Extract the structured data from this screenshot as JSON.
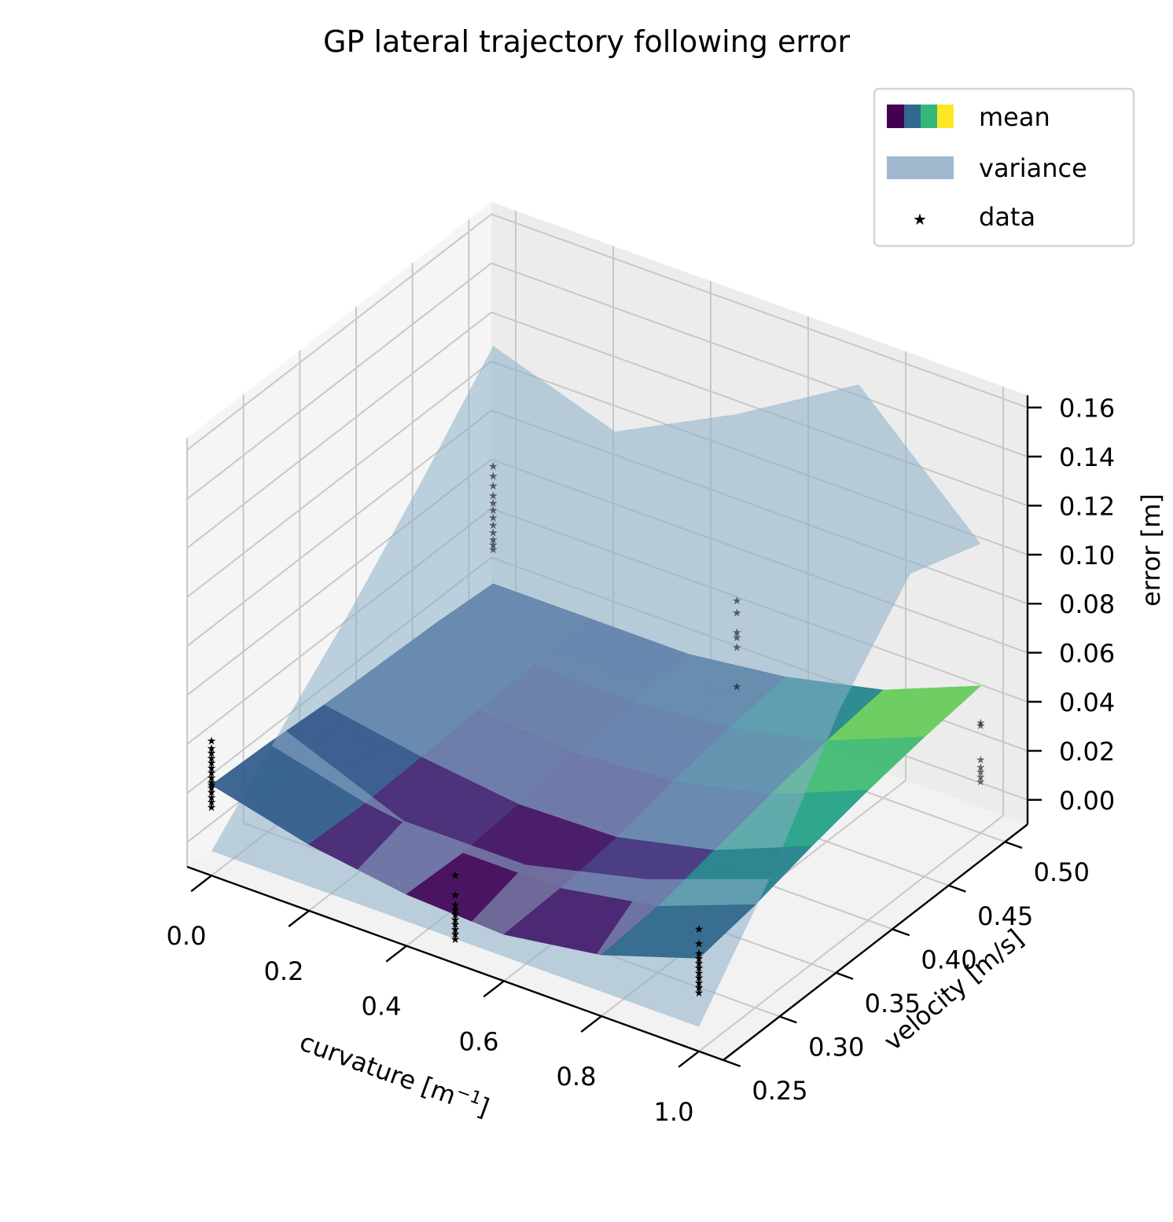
{
  "chart_data": {
    "type": "surface3d",
    "title": "GP lateral trajectory following error",
    "xlabel": "curvature [m⁻¹]",
    "ylabel": "velocity [m/s]",
    "zlabel": "error [m]",
    "xlim": [
      -0.05,
      1.05
    ],
    "ylim": [
      0.25,
      0.52
    ],
    "zlim": [
      -0.01,
      0.165
    ],
    "xticks": [
      "0.0",
      "0.2",
      "0.4",
      "0.6",
      "0.8",
      "1.0"
    ],
    "xtick_values": [
      0.0,
      0.2,
      0.4,
      0.6,
      0.8,
      1.0
    ],
    "yticks": [
      "0.25",
      "0.30",
      "0.35",
      "0.40",
      "0.45",
      "0.50"
    ],
    "ytick_values": [
      0.25,
      0.3,
      0.35,
      0.4,
      0.45,
      0.5
    ],
    "zticks": [
      "0.00",
      "0.02",
      "0.04",
      "0.06",
      "0.08",
      "0.10",
      "0.12",
      "0.14",
      "0.16"
    ],
    "ztick_values": [
      0.0,
      0.02,
      0.04,
      0.06,
      0.08,
      0.1,
      0.12,
      0.14,
      0.16
    ],
    "grid": true,
    "legend_position": "top-right",
    "legend": [
      {
        "label": "mean",
        "kind": "colormap"
      },
      {
        "label": "variance",
        "kind": "patch",
        "color": "#9fb8cd"
      },
      {
        "label": "data",
        "kind": "marker",
        "color": "#000000"
      }
    ],
    "colormap": "viridis",
    "mean_surface": {
      "x": [
        0.0,
        0.2,
        0.4,
        0.6,
        0.8,
        1.0
      ],
      "y": [
        0.25,
        0.3,
        0.35,
        0.4,
        0.45,
        0.5
      ],
      "z": [
        [
          0.027,
          0.017,
          0.011,
          0.009,
          0.015,
          0.028
        ],
        [
          0.026,
          0.016,
          0.01,
          0.01,
          0.017,
          0.032
        ],
        [
          0.024,
          0.017,
          0.012,
          0.013,
          0.022,
          0.038
        ],
        [
          0.023,
          0.018,
          0.015,
          0.018,
          0.027,
          0.043
        ],
        [
          0.022,
          0.019,
          0.018,
          0.022,
          0.031,
          0.047
        ],
        [
          0.02,
          0.02,
          0.02,
          0.025,
          0.034,
          0.05
        ]
      ]
    },
    "variance_surface": {
      "x": [
        0.0,
        0.25,
        0.5,
        0.75,
        1.0
      ],
      "y": [
        0.25,
        0.3125,
        0.375,
        0.4375,
        0.5
      ],
      "z": [
        [
          0.0,
          0.0,
          0.0,
          0.0,
          0.0
        ],
        [
          0.028,
          0.008,
          0.008,
          0.02,
          0.038
        ],
        [
          0.055,
          0.035,
          0.045,
          0.075,
          0.085
        ],
        [
          0.085,
          0.07,
          0.095,
          0.135,
          0.118
        ],
        [
          0.117,
          0.1,
          0.125,
          0.155,
          0.108
        ]
      ]
    },
    "data_points": {
      "groups": [
        {
          "x": 0.0,
          "y": 0.25,
          "z": [
            0.018,
            0.02,
            0.022,
            0.024,
            0.026,
            0.027,
            0.028,
            0.03,
            0.032,
            0.034,
            0.036,
            0.038,
            0.04,
            0.042,
            0.045
          ]
        },
        {
          "x": 0.5,
          "y": 0.25,
          "z": [
            0.0,
            0.002,
            0.004,
            0.006,
            0.008,
            0.01,
            0.012,
            0.014,
            0.018,
            0.026
          ]
        },
        {
          "x": 1.0,
          "y": 0.25,
          "z": [
            0.014,
            0.016,
            0.018,
            0.02,
            0.022,
            0.024,
            0.026,
            0.028,
            0.03,
            0.034,
            0.04
          ]
        },
        {
          "x": 0.0,
          "y": 0.5,
          "z": [
            0.034,
            0.036,
            0.038,
            0.041,
            0.044,
            0.047,
            0.05,
            0.053,
            0.056,
            0.06,
            0.064,
            0.068
          ]
        },
        {
          "x": 0.5,
          "y": 0.5,
          "z": [
            0.014,
            0.03,
            0.034,
            0.036,
            0.044,
            0.049
          ]
        },
        {
          "x": 1.0,
          "y": 0.5,
          "z": [
            0.011,
            0.013,
            0.015,
            0.017,
            0.02,
            0.034,
            0.035
          ]
        }
      ]
    }
  }
}
